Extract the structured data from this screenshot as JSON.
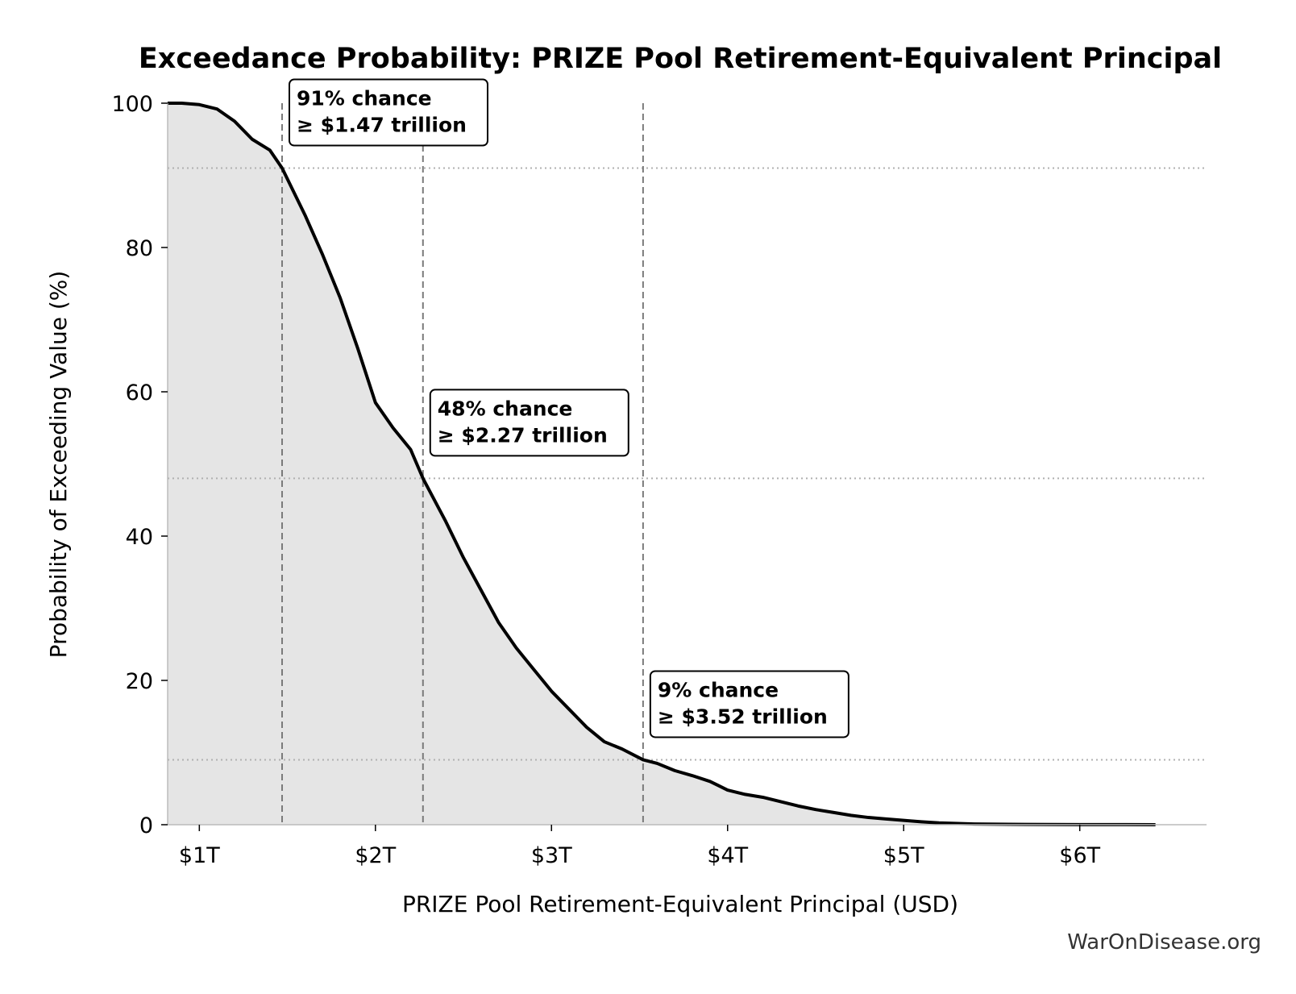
{
  "chart_data": {
    "type": "area",
    "title": "Exceedance Probability: PRIZE Pool Retirement-Equivalent Principal",
    "xlabel": "PRIZE Pool Retirement-Equivalent Principal (USD)",
    "ylabel": "Probability of Exceeding Value (%)",
    "x_unit": "trillion USD",
    "xlim": [
      0.82,
      6.72
    ],
    "ylim": [
      0,
      100
    ],
    "x_ticks": [
      {
        "value": 1,
        "label": "$1T"
      },
      {
        "value": 2,
        "label": "$2T"
      },
      {
        "value": 3,
        "label": "$3T"
      },
      {
        "value": 4,
        "label": "$4T"
      },
      {
        "value": 5,
        "label": "$5T"
      },
      {
        "value": 6,
        "label": "$6T"
      }
    ],
    "y_ticks": [
      {
        "value": 0,
        "label": "0"
      },
      {
        "value": 20,
        "label": "20"
      },
      {
        "value": 40,
        "label": "40"
      },
      {
        "value": 60,
        "label": "60"
      },
      {
        "value": 80,
        "label": "80"
      },
      {
        "value": 100,
        "label": "100"
      }
    ],
    "grid": false,
    "series": [
      {
        "x": [
          0.82,
          0.9,
          1.0,
          1.1,
          1.2,
          1.3,
          1.4,
          1.47,
          1.55,
          1.6,
          1.7,
          1.8,
          1.9,
          2.0,
          2.1,
          2.2,
          2.27,
          2.4,
          2.5,
          2.6,
          2.7,
          2.8,
          2.9,
          3.0,
          3.1,
          3.2,
          3.3,
          3.4,
          3.52,
          3.6,
          3.7,
          3.8,
          3.9,
          4.0,
          4.1,
          4.2,
          4.3,
          4.4,
          4.5,
          4.6,
          4.7,
          4.8,
          4.9,
          5.0,
          5.1,
          5.2,
          5.4,
          5.6,
          6.0,
          6.43
        ],
        "y": [
          100,
          100,
          99.8,
          99.2,
          97.5,
          95.0,
          93.5,
          91,
          87,
          84.5,
          79,
          73,
          66,
          58.5,
          55.0,
          52,
          48,
          42,
          37,
          32.5,
          28,
          24.5,
          21.5,
          18.5,
          16,
          13.5,
          11.5,
          10.5,
          9,
          8.5,
          7.5,
          6.8,
          6.0,
          4.8,
          4.2,
          3.8,
          3.2,
          2.6,
          2.1,
          1.7,
          1.3,
          1.0,
          0.8,
          0.6,
          0.4,
          0.25,
          0.1,
          0.05,
          0.02,
          0
        ]
      }
    ],
    "reference_lines": [
      {
        "x": 1.47,
        "probability": 91,
        "box_line1": "91% chance",
        "box_line2": "≥ $1.47 trillion"
      },
      {
        "x": 2.27,
        "probability": 48,
        "box_line1": "48% chance",
        "box_line2": "≥ $2.27 trillion"
      },
      {
        "x": 3.52,
        "probability": 9,
        "box_line1": "9% chance",
        "box_line2": "≥ $3.52 trillion"
      }
    ]
  },
  "source": "WarOnDisease.org",
  "colors": {
    "curve": "#000000",
    "fill": "#e5e5e5",
    "reference_line": "#7a7a7a",
    "probability_line": "#b0b0b0",
    "axis": "#bbbbbb"
  }
}
